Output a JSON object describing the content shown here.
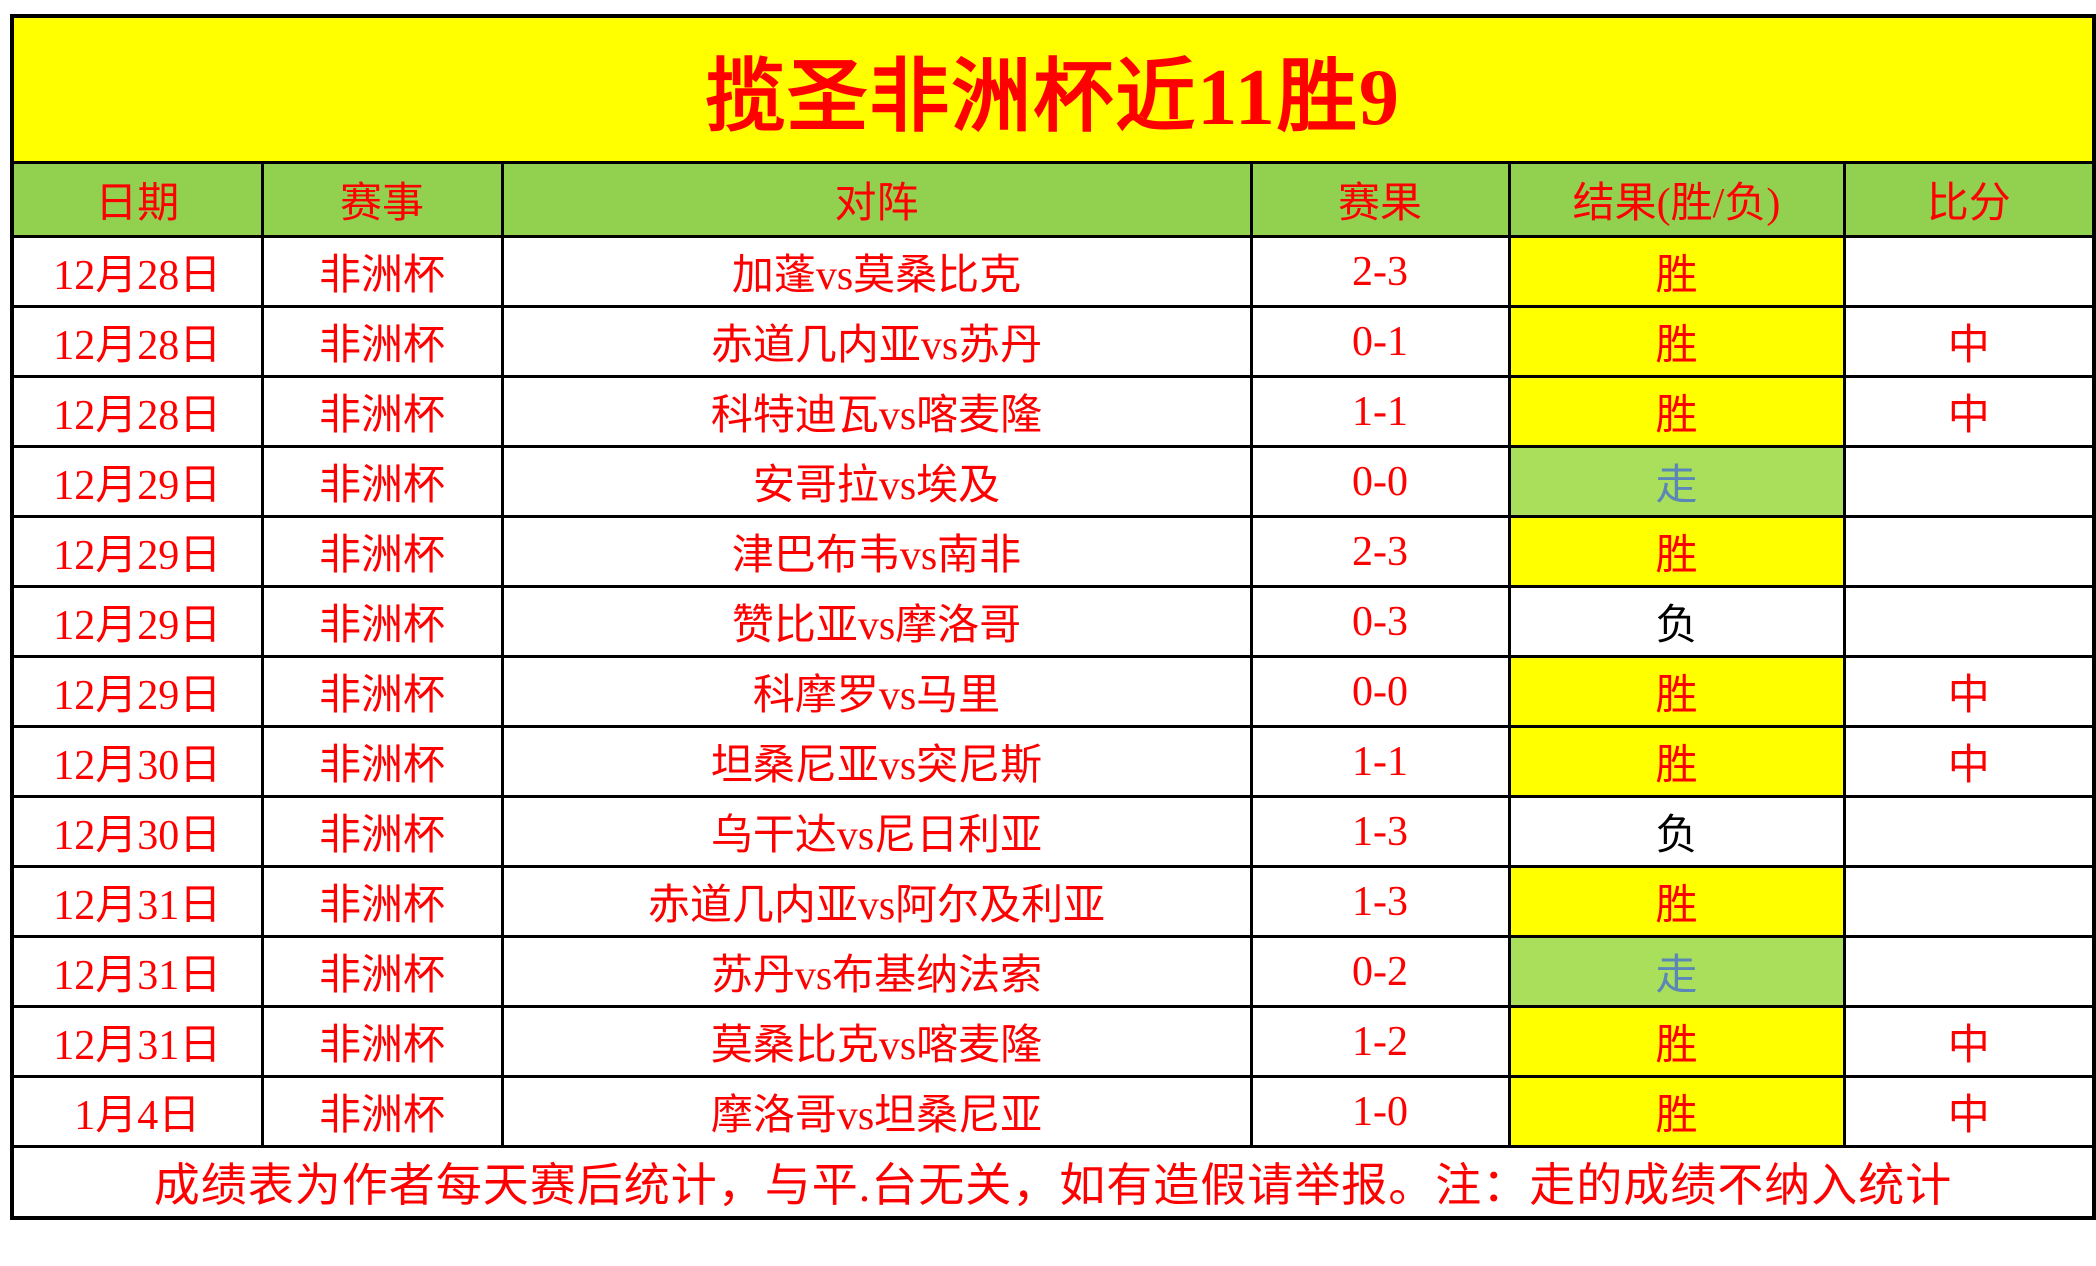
{
  "title": "揽圣非洲杯近11胜9",
  "columns": {
    "date": "日期",
    "event": "赛事",
    "matchup": "对阵",
    "score": "赛果",
    "result": "结果(胜/负)",
    "hit": "比分"
  },
  "rows": [
    {
      "date": "12月28日",
      "event": "非洲杯",
      "matchup": "加蓬vs莫桑比克",
      "score": "2-3",
      "result": "胜",
      "result_type": "win",
      "hit": ""
    },
    {
      "date": "12月28日",
      "event": "非洲杯",
      "matchup": "赤道几内亚vs苏丹",
      "score": "0-1",
      "result": "胜",
      "result_type": "win",
      "hit": "中"
    },
    {
      "date": "12月28日",
      "event": "非洲杯",
      "matchup": "科特迪瓦vs喀麦隆",
      "score": "1-1",
      "result": "胜",
      "result_type": "win",
      "hit": "中"
    },
    {
      "date": "12月29日",
      "event": "非洲杯",
      "matchup": "安哥拉vs埃及",
      "score": "0-0",
      "result": "走",
      "result_type": "walk",
      "hit": ""
    },
    {
      "date": "12月29日",
      "event": "非洲杯",
      "matchup": "津巴布韦vs南非",
      "score": "2-3",
      "result": "胜",
      "result_type": "win",
      "hit": ""
    },
    {
      "date": "12月29日",
      "event": "非洲杯",
      "matchup": "赞比亚vs摩洛哥",
      "score": "0-3",
      "result": "负",
      "result_type": "loss",
      "hit": ""
    },
    {
      "date": "12月29日",
      "event": "非洲杯",
      "matchup": "科摩罗vs马里",
      "score": "0-0",
      "result": "胜",
      "result_type": "win",
      "hit": "中"
    },
    {
      "date": "12月30日",
      "event": "非洲杯",
      "matchup": "坦桑尼亚vs突尼斯",
      "score": "1-1",
      "result": "胜",
      "result_type": "win",
      "hit": "中"
    },
    {
      "date": "12月30日",
      "event": "非洲杯",
      "matchup": "乌干达vs尼日利亚",
      "score": "1-3",
      "result": "负",
      "result_type": "loss",
      "hit": ""
    },
    {
      "date": "12月31日",
      "event": "非洲杯",
      "matchup": "赤道几内亚vs阿尔及利亚",
      "score": "1-3",
      "result": "胜",
      "result_type": "win",
      "hit": ""
    },
    {
      "date": "12月31日",
      "event": "非洲杯",
      "matchup": "苏丹vs布基纳法索",
      "score": "0-2",
      "result": "走",
      "result_type": "walk",
      "hit": ""
    },
    {
      "date": "12月31日",
      "event": "非洲杯",
      "matchup": "莫桑比克vs喀麦隆",
      "score": "1-2",
      "result": "胜",
      "result_type": "win",
      "hit": "中"
    },
    {
      "date": "1月4日",
      "event": "非洲杯",
      "matchup": "摩洛哥vs坦桑尼亚",
      "score": "1-0",
      "result": "胜",
      "result_type": "win",
      "hit": "中"
    }
  ],
  "footer_note": "成绩表为作者每天赛后统计，与平.台无关，如有造假请举报。注：走的成绩不纳入统计",
  "colors": {
    "banner_bg": "#FFFF00",
    "title_text": "#FF0000",
    "header_bg": "#92D050",
    "header_text": "#FF0000",
    "body_text": "#FF0000",
    "win_bg": "#FFFF00",
    "win_text": "#FF0000",
    "walk_bg": "#A9DF5A",
    "walk_text": "#5B87B8",
    "loss_bg": "#FFFFFF",
    "loss_text": "#000000",
    "border": "#000000"
  }
}
